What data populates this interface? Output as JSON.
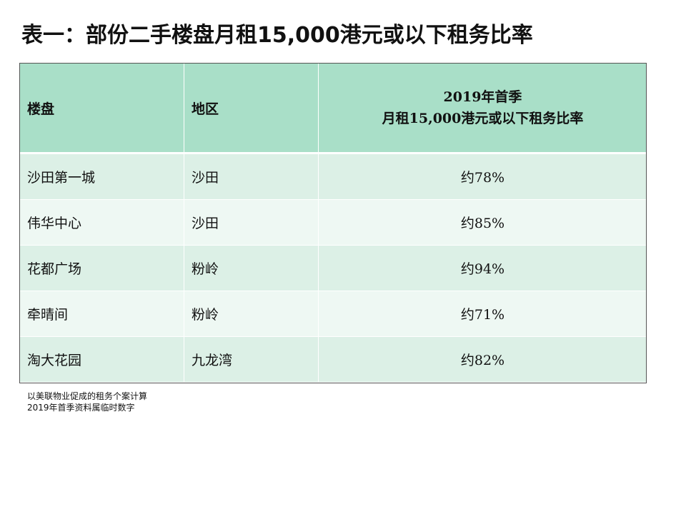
{
  "title": "表一：部份二手楼盘月租15,000港元或以下租务比率",
  "table": {
    "headers": {
      "estate": "楼盘",
      "district": "地区",
      "ratio_line1": "2019年首季",
      "ratio_line2": "月租15,000港元或以下租务比率"
    },
    "rows": [
      {
        "estate": "沙田第一城",
        "district": "沙田",
        "ratio": "约78%"
      },
      {
        "estate": "伟华中心",
        "district": "沙田",
        "ratio": "约85%"
      },
      {
        "estate": "花都广场",
        "district": "粉岭",
        "ratio": "约94%"
      },
      {
        "estate": "牵晴间",
        "district": "粉岭",
        "ratio": "约71%"
      },
      {
        "estate": "淘大花园",
        "district": "九龙湾",
        "ratio": "约82%"
      }
    ]
  },
  "notes": [
    "以美联物业促成的租务个案计算",
    "2019年首季资料属临时数字"
  ],
  "colors": {
    "header_bg": "#a9dfc8",
    "row_dark": "#dcf0e6",
    "row_light": "#eef8f3"
  }
}
